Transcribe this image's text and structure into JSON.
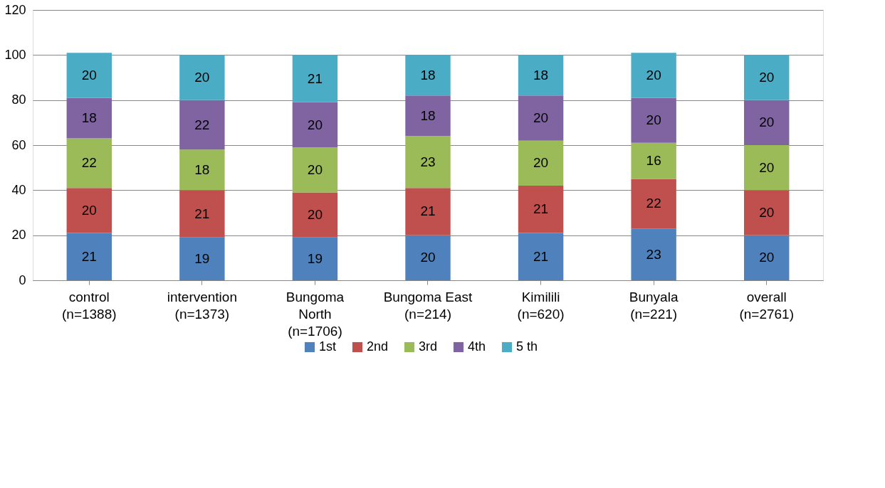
{
  "chart_data": {
    "type": "bar",
    "stacked": true,
    "categories": [
      "control\n(n=1388)",
      "intervention\n(n=1373)",
      "Bungoma\nNorth\n(n=1706)",
      "Bungoma East\n(n=214)",
      "Kimilili\n(n=620)",
      "Bunyala\n(n=221)",
      "overall\n(n=2761)"
    ],
    "series": [
      {
        "name": "1st",
        "color": "#4f81bd",
        "values": [
          21,
          19,
          19,
          20,
          21,
          23,
          20
        ]
      },
      {
        "name": "2nd",
        "color": "#c0504d",
        "values": [
          20,
          21,
          20,
          21,
          21,
          22,
          20
        ]
      },
      {
        "name": "3rd",
        "color": "#9bbb59",
        "values": [
          22,
          18,
          20,
          23,
          20,
          16,
          20
        ]
      },
      {
        "name": "4th",
        "color": "#8064a2",
        "values": [
          18,
          22,
          20,
          18,
          20,
          20,
          20
        ]
      },
      {
        "name": "5 th",
        "color": "#4bacc6",
        "values": [
          20,
          20,
          21,
          18,
          18,
          20,
          20
        ]
      }
    ],
    "ylim": [
      0,
      120
    ],
    "yticks": [
      0,
      20,
      40,
      60,
      80,
      100,
      120
    ],
    "grid": "y",
    "legend": "bottom",
    "data_labels": true
  }
}
